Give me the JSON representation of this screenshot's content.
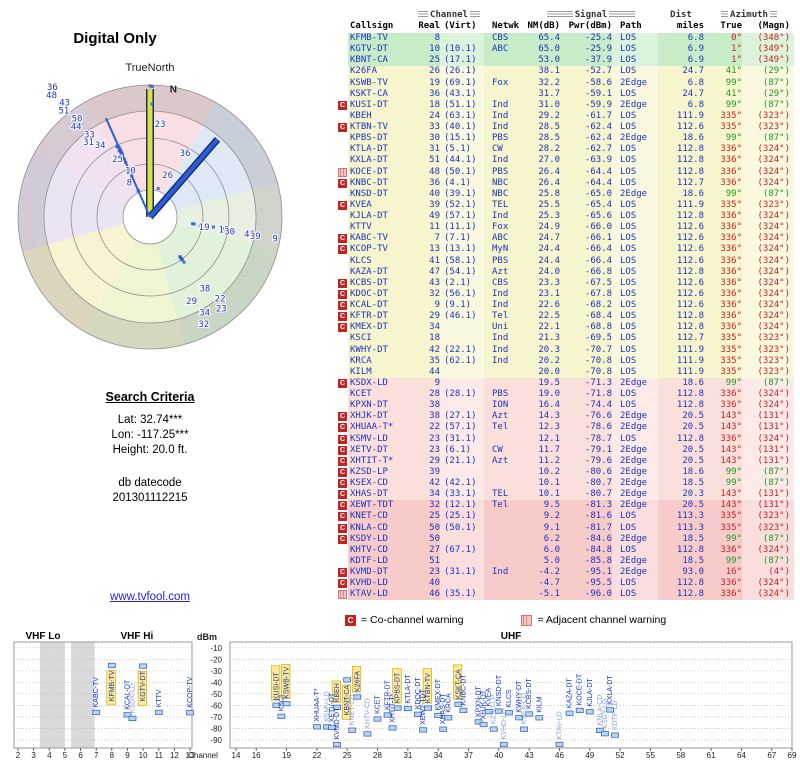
{
  "page": {
    "title": "Digital Only",
    "true_north_label": "TrueNorth",
    "compass_label": "N",
    "link": "www.tvfool.com"
  },
  "criteria": {
    "heading": "Search Criteria",
    "lat": "Lat: 32.74***",
    "lon": "Lon: -117.25***",
    "height": "Height: 20.0 ft.",
    "datecode_label": "db datecode",
    "datecode": "201301112215"
  },
  "legend": {
    "co_symbol": "C",
    "co_label": "= Co-channel warning",
    "adj_label": "= Adjacent channel warning"
  },
  "colors": {
    "accent_blue": "#1a35c0",
    "warn_red": "#c32222",
    "adjacent_pink": "#f6c4c4",
    "azimuth_red": "#cc2222",
    "azimuth_green": "#1d9a1d",
    "tint_strong": "#c8ecc8",
    "tint_moderate": "#f7f5cd",
    "tint_weak": "#fbdfdb",
    "tint_very_weak": "#f8cbcb",
    "beam_yellow": "#dce23a",
    "beam_blue": "#2b5fd9"
  },
  "table": {
    "groups": {
      "channel": "Channel",
      "signal": "Signal",
      "dist": "Dist",
      "azimuth": "Azimuth"
    },
    "columns": [
      "",
      "Callsign",
      "Real",
      "(Virt)",
      "Netwk",
      "NM(dB)",
      "Pwr(dBm)",
      "Path",
      "miles",
      "True",
      "(Magn)"
    ],
    "rows": [
      [
        "",
        "KFMB-TV",
        "8",
        "",
        "CBS",
        "65.4",
        "-25.4",
        "LOS",
        "6.8",
        "0°",
        "(348°)"
      ],
      [
        "",
        "KGTV-DT",
        "10",
        "(10.1)",
        "ABC",
        "65.0",
        "-25.9",
        "LOS",
        "6.9",
        "1°",
        "(349°)"
      ],
      [
        "",
        "KBNT-CA",
        "25",
        "(17.1)",
        "",
        "53.0",
        "-37.9",
        "LOS",
        "6.9",
        "1°",
        "(349°)"
      ],
      [
        "",
        "K26FA",
        "26",
        "(26.1)",
        "",
        "38.1",
        "-52.7",
        "LOS",
        "24.7",
        "41°",
        "(29°)"
      ],
      [
        "",
        "KSWB-TV",
        "19",
        "(69.1)",
        "Fox",
        "32.2",
        "-58.6",
        "2Edge",
        "6.8",
        "99°",
        "(87°)"
      ],
      [
        "",
        "KSKT-CA",
        "36",
        "(43.1)",
        "",
        "31.7",
        "-59.1",
        "LOS",
        "24.7",
        "41°",
        "(29°)"
      ],
      [
        "C",
        "KUSI-DT",
        "18",
        "(51.1)",
        "Ind",
        "31.0",
        "-59.9",
        "2Edge",
        "6.8",
        "99°",
        "(87°)"
      ],
      [
        "",
        "KBEH",
        "24",
        "(63.1)",
        "Ind",
        "29.2",
        "-61.7",
        "LOS",
        "111.9",
        "335°",
        "(323°)"
      ],
      [
        "C",
        "KTBN-TV",
        "33",
        "(40.1)",
        "Ind",
        "28.5",
        "-62.4",
        "LOS",
        "112.6",
        "335°",
        "(323°)"
      ],
      [
        "",
        "KPBS-DT",
        "30",
        "(15.1)",
        "PBS",
        "28.5",
        "-62.4",
        "2Edge",
        "18.6",
        "99°",
        "(87°)"
      ],
      [
        "",
        "KTLA-DT",
        "31",
        "(5.1)",
        "CW",
        "28.2",
        "-62.7",
        "LOS",
        "112.8",
        "336°",
        "(324°)"
      ],
      [
        "",
        "KXLA-DT",
        "51",
        "(44.1)",
        "Ind",
        "27.0",
        "-63.9",
        "LOS",
        "112.8",
        "336°",
        "(324°)"
      ],
      [
        "A",
        "KOCE-DT",
        "48",
        "(50.1)",
        "PBS",
        "26.4",
        "-64.4",
        "LOS",
        "112.8",
        "336°",
        "(324°)"
      ],
      [
        "C",
        "KNBC-DT",
        "36",
        "(4.1)",
        "NBC",
        "26.4",
        "-64.4",
        "LOS",
        "112.7",
        "336°",
        "(324°)"
      ],
      [
        "",
        "KNSD-DT",
        "40",
        "(39.1)",
        "NBC",
        "25.8",
        "-65.0",
        "2Edge",
        "18.6",
        "99°",
        "(87°)"
      ],
      [
        "C",
        "KVEA",
        "39",
        "(52.1)",
        "TEL",
        "25.5",
        "-65.4",
        "LOS",
        "111.9",
        "335°",
        "(323°)"
      ],
      [
        "",
        "KJLA-DT",
        "49",
        "(57.1)",
        "Ind",
        "25.3",
        "-65.6",
        "LOS",
        "112.8",
        "336°",
        "(324°)"
      ],
      [
        "",
        "KTTV",
        "11",
        "(11.1)",
        "Fox",
        "24.9",
        "-66.0",
        "LOS",
        "112.6",
        "336°",
        "(324°)"
      ],
      [
        "C",
        "KABC-TV",
        "7",
        "(7.1)",
        "ABC",
        "24.7",
        "-66.1",
        "LOS",
        "112.6",
        "336°",
        "(324°)"
      ],
      [
        "C",
        "KCOP-TV",
        "13",
        "(13.1)",
        "MyN",
        "24.4",
        "-66.4",
        "LOS",
        "112.6",
        "336°",
        "(324°)"
      ],
      [
        "",
        "KLCS",
        "41",
        "(58.1)",
        "PBS",
        "24.4",
        "-66.4",
        "LOS",
        "112.6",
        "336°",
        "(324°)"
      ],
      [
        "",
        "KAZA-DT",
        "47",
        "(54.1)",
        "Azt",
        "24.0",
        "-66.8",
        "LOS",
        "112.8",
        "336°",
        "(324°)"
      ],
      [
        "C",
        "KCBS-DT",
        "43",
        "(2.1)",
        "CBS",
        "23.3",
        "-67.5",
        "LOS",
        "112.6",
        "336°",
        "(324°)"
      ],
      [
        "C",
        "KDOC-DT",
        "32",
        "(56.1)",
        "Ind",
        "23.1",
        "-67.8",
        "LOS",
        "112.6",
        "336°",
        "(324°)"
      ],
      [
        "C",
        "KCAL-DT",
        "9",
        "(9.1)",
        "Ind",
        "22.6",
        "-68.2",
        "LOS",
        "112.6",
        "336°",
        "(324°)"
      ],
      [
        "C",
        "KFTR-DT",
        "29",
        "(46.1)",
        "Tel",
        "22.5",
        "-68.4",
        "LOS",
        "112.8",
        "336°",
        "(324°)"
      ],
      [
        "C",
        "KMEX-DT",
        "34",
        "",
        "Uni",
        "22.1",
        "-68.8",
        "LOS",
        "112.8",
        "336°",
        "(324°)"
      ],
      [
        "",
        "KSCI",
        "18",
        "",
        "Ind",
        "21.3",
        "-69.5",
        "LOS",
        "112.7",
        "335°",
        "(323°)"
      ],
      [
        "",
        "KWHY-DT",
        "42",
        "(22.1)",
        "Ind",
        "20.3",
        "-70.7",
        "LOS",
        "111.9",
        "335°",
        "(323°)"
      ],
      [
        "",
        "KRCA",
        "35",
        "(62.1)",
        "Ind",
        "20.2",
        "-70.8",
        "LOS",
        "111.9",
        "335°",
        "(323°)"
      ],
      [
        "",
        "KILM",
        "44",
        "",
        "",
        "20.0",
        "-70.8",
        "LOS",
        "111.9",
        "335°",
        "(323°)"
      ],
      [
        "C",
        "KSDX-LD",
        "9",
        "",
        "",
        "19.5",
        "-71.3",
        "2Edge",
        "18.6",
        "99°",
        "(87°)"
      ],
      [
        "",
        "KCET",
        "28",
        "(28.1)",
        "PBS",
        "19.0",
        "-71.8",
        "LOS",
        "112.8",
        "336°",
        "(324°)"
      ],
      [
        "",
        "KPXN-DT",
        "38",
        "",
        "ION",
        "16.4",
        "-74.4",
        "LOS",
        "112.8",
        "336°",
        "(324°)"
      ],
      [
        "C",
        "XHJK-DT",
        "38",
        "(27.1)",
        "Azt",
        "14.3",
        "-76.6",
        "2Edge",
        "20.5",
        "143°",
        "(131°)"
      ],
      [
        "C",
        "XHUAA-T*",
        "22",
        "(57.1)",
        "Tel",
        "12.3",
        "-78.6",
        "2Edge",
        "20.5",
        "143°",
        "(131°)"
      ],
      [
        "C",
        "KSMV-LD",
        "23",
        "(31.1)",
        "",
        "12.1",
        "-78.7",
        "LOS",
        "112.8",
        "336°",
        "(324°)"
      ],
      [
        "C",
        "XETV-DT",
        "23",
        "(6.1)",
        "CW",
        "11.7",
        "-79.1",
        "2Edge",
        "20.5",
        "143°",
        "(131°)"
      ],
      [
        "C",
        "XHTIT-T*",
        "29",
        "(21.1)",
        "Azt",
        "11.2",
        "-79.6",
        "2Edge",
        "20.5",
        "143°",
        "(131°)"
      ],
      [
        "C",
        "KZSD-LP",
        "39",
        "",
        "",
        "10.2",
        "-80.6",
        "2Edge",
        "18.6",
        "99°",
        "(87°)"
      ],
      [
        "C",
        "KSEX-CD",
        "42",
        "(42.1)",
        "",
        "10.1",
        "-80.7",
        "2Edge",
        "18.5",
        "99°",
        "(87°)"
      ],
      [
        "C",
        "XHAS-DT",
        "34",
        "(33.1)",
        "TEL",
        "10.1",
        "-80.7",
        "2Edge",
        "20.3",
        "143°",
        "(131°)"
      ],
      [
        "C",
        "XEWT-TDT",
        "32",
        "(12.1)",
        "Tel",
        "9.5",
        "-81.3",
        "2Edge",
        "20.5",
        "143°",
        "(131°)"
      ],
      [
        "C",
        "KNET-CD",
        "25",
        "(25.1)",
        "",
        "9.2",
        "-81.6",
        "LOS",
        "113.3",
        "335°",
        "(323°)"
      ],
      [
        "C",
        "KNLA-CD",
        "50",
        "(50.1)",
        "",
        "9.1",
        "-81.7",
        "LOS",
        "113.3",
        "335°",
        "(323°)"
      ],
      [
        "C",
        "KSDY-LD",
        "50",
        "",
        "",
        "6.2",
        "-84.6",
        "2Edge",
        "18.5",
        "99°",
        "(87°)"
      ],
      [
        "",
        "KHTV-CD",
        "27",
        "(67.1)",
        "",
        "6.0",
        "-84.8",
        "LOS",
        "112.8",
        "336°",
        "(324°)"
      ],
      [
        "",
        "KDTF-LD",
        "51",
        "",
        "",
        "5.0",
        "-85.8",
        "2Edge",
        "18.5",
        "99°",
        "(87°)"
      ],
      [
        "C",
        "KVMD-DT",
        "23",
        "(31.1)",
        "Ind",
        "-4.2",
        "-95.1",
        "2Edge",
        "93.0",
        "16°",
        "(4°)"
      ],
      [
        "C",
        "KVHD-LD",
        "40",
        "",
        "",
        "-4.7",
        "-95.5",
        "LOS",
        "112.8",
        "336°",
        "(324°)"
      ],
      [
        "A",
        "KTAV-LD",
        "46",
        "(35.1)",
        "",
        "-5.1",
        "-96.0",
        "LOS",
        "112.8",
        "336°",
        "(324°)"
      ]
    ]
  },
  "chart_data": [
    {
      "type": "radar",
      "title": "Digital Only",
      "rings": 5,
      "radial_unit": "NM(dB) signal margin by true azimuth",
      "beams": [
        {
          "azimuth": 0,
          "length_frac": 0.97,
          "color": "#dce23a",
          "outline": "#1b2e6e",
          "width": 5
        },
        {
          "azimuth": 41,
          "length_frac": 0.78,
          "color": "#2b5fd9",
          "outline": "#1b2e6e",
          "width": 4
        },
        {
          "azimuth": 336,
          "length_frac": 0.82,
          "color": "#2b5fd9",
          "outline": "",
          "width": 2
        }
      ],
      "wedges": [
        {
          "from": 330,
          "to": 30,
          "color": "#f7d6dc"
        },
        {
          "from": 30,
          "to": 75,
          "color": "#d7e4f4"
        },
        {
          "from": 75,
          "to": 105,
          "color": "#e2ecdb"
        },
        {
          "from": 105,
          "to": 165,
          "color": "#d8efcf"
        },
        {
          "from": 165,
          "to": 210,
          "color": "#eaf2c6"
        },
        {
          "from": 210,
          "to": 255,
          "color": "#f6f0c4"
        },
        {
          "from": 255,
          "to": 300,
          "color": "#e7dcf0"
        },
        {
          "from": 300,
          "to": 330,
          "color": "#efd9ea"
        }
      ],
      "label_strings": [
        {
          "azimuth": 322,
          "start_r": 95,
          "step": 10,
          "labels": [
            "31",
            "33",
            "44",
            "50",
            "51",
            "43",
            "48",
            "36"
          ]
        },
        {
          "azimuth": 327,
          "start_r": 86,
          "step": 10,
          "labels": [
            "34"
          ]
        },
        {
          "azimuth": 333,
          "start_r": 39,
          "step": 13,
          "labels": [
            "8",
            "10",
            "25"
          ]
        },
        {
          "azimuth": 26,
          "start_r": 47,
          "step": 24,
          "labels": [
            "26",
            "36"
          ]
        },
        {
          "azimuth": 8,
          "start_r": 94,
          "step": 12,
          "labels": [
            "23"
          ]
        },
        {
          "azimuth": 100,
          "start_r": 58,
          "step": 13,
          "labels": [
            "19",
            "18",
            "30",
            "40",
            "39",
            "9"
          ]
        },
        {
          "azimuth": 141,
          "start_r": 92,
          "step": 13,
          "labels": [
            "38",
            "22",
            "23"
          ]
        },
        {
          "azimuth": 152,
          "start_r": 95,
          "step": 13,
          "labels": [
            "29",
            "34",
            "32"
          ]
        }
      ]
    },
    {
      "type": "scatter",
      "ylabel": "dBm",
      "xlabel": "Channel",
      "y_ticks": [
        -10,
        -20,
        -30,
        -40,
        -50,
        -60,
        -70,
        -80,
        -90
      ],
      "ylim": [
        -5,
        -95
      ],
      "stations_source": "table.rows (x = Real channel, y = Pwr dBm, label = Callsign)",
      "panels": [
        {
          "labels": [
            "VHF Lo",
            "VHF Hi"
          ],
          "range": [
            2,
            13
          ],
          "x_ticks": [
            2,
            3,
            4,
            5,
            6,
            7,
            8,
            9,
            10,
            11,
            12,
            13
          ],
          "shaded_channels": [
            [
              3.4,
              5.0
            ],
            [
              5.4,
              6.9
            ]
          ]
        },
        {
          "labels": [
            "UHF"
          ],
          "range": [
            14,
            69
          ],
          "x_ticks": [
            14,
            16,
            19,
            22,
            25,
            28,
            31,
            34,
            37,
            40,
            43,
            46,
            49,
            52,
            55,
            58,
            61,
            64,
            67,
            69
          ],
          "shaded_channels": []
        }
      ]
    }
  ]
}
